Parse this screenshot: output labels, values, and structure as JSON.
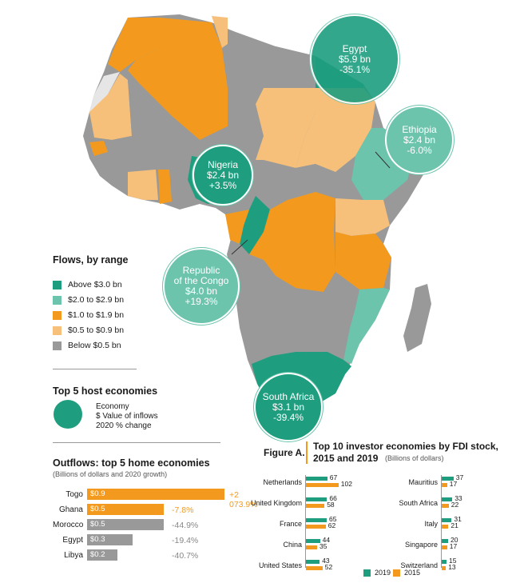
{
  "colors": {
    "above_3": "#1e9e7f",
    "two_to_three": "#6cc4ad",
    "one_to_two": "#f39a1e",
    "half_to_one": "#f7c07a",
    "below_half": "#999999",
    "no_data": "#e6e6e6",
    "bubble_dark": "#1e9e7f",
    "bubble_light": "#6cc4ad",
    "series_2019": "#1e9e7f",
    "series_2015": "#f39a1e",
    "outflow_orange": "#f39a1e",
    "outflow_grey": "#999999"
  },
  "bubbles": {
    "egypt": {
      "name": "Egypt",
      "value": "$5.9 bn",
      "change": "-35.1%"
    },
    "ethiopia": {
      "name": "Ethiopia",
      "value": "$2.4 bn",
      "change": "-6.0%"
    },
    "nigeria": {
      "name": "Nigeria",
      "value": "$2.4 bn",
      "change": "+3.5%"
    },
    "congo": {
      "name1": "Republic",
      "name2": "of the Congo",
      "value": "$4.0 bn",
      "change": "+19.3%"
    },
    "south_africa": {
      "name": "South Africa",
      "value": "$3.1 bn",
      "change": "-39.4%"
    }
  },
  "flows_legend": {
    "title": "Flows, by range",
    "items": [
      "Above $3.0 bn",
      "$2.0 to $2.9 bn",
      "$1.0 to $1.9 bn",
      "$0.5 to $0.9 bn",
      "Below $0.5 bn"
    ]
  },
  "top5_host": {
    "title": "Top 5 host economies",
    "key": [
      "Economy",
      "$ Value of inflows",
      "2020 % change"
    ]
  },
  "outflows": {
    "title": "Outflows: top 5 home economies",
    "subtitle": "(Billions of dollars and 2020 growth)",
    "rows": [
      {
        "economy": "Togo",
        "value": 0.9,
        "label": "$0.9",
        "growth": "+2 073.9%",
        "positive": true
      },
      {
        "economy": "Ghana",
        "value": 0.5,
        "label": "$0.5",
        "growth": "-7.8%",
        "positive": true
      },
      {
        "economy": "Morocco",
        "value": 0.5,
        "label": "$0.5",
        "growth": "-44.9%",
        "positive": false
      },
      {
        "economy": "Egypt",
        "value": 0.3,
        "label": "$0.3",
        "growth": "-19.4%",
        "positive": false
      },
      {
        "economy": "Libya",
        "value": 0.2,
        "label": "$0.2",
        "growth": "-40.7%",
        "positive": false
      }
    ]
  },
  "figure_a": {
    "label": "Figure A.",
    "title_line1": "Top 10 investor economies by FDI stock,",
    "title_line2": "2015 and 2019",
    "unit": "(Billions of dollars)",
    "legend": [
      "2019",
      "2015"
    ]
  },
  "chart_data": {
    "type": "bar",
    "title": "Top 10 investor economies by FDI stock, 2015 and 2019",
    "unit": "(Billions of dollars)",
    "categories": [
      "Netherlands",
      "United Kingdom",
      "France",
      "China",
      "United States",
      "Mauritius",
      "South Africa",
      "Italy",
      "Singapore",
      "Switzerland"
    ],
    "series": [
      {
        "name": "2019",
        "values": [
          67,
          66,
          65,
          44,
          43,
          37,
          33,
          31,
          20,
          15
        ]
      },
      {
        "name": "2015",
        "values": [
          102,
          58,
          62,
          35,
          52,
          17,
          22,
          21,
          17,
          13
        ]
      }
    ]
  }
}
